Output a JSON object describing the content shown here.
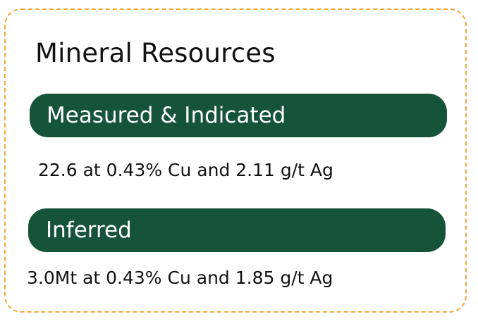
{
  "card": {
    "title": "Mineral Resources",
    "border_color": "#f3a73b",
    "pill_color": "#16543a"
  },
  "sections": [
    {
      "label": "Measured & Indicated",
      "value": "22.6 at 0.43% Cu and 2.11 g/t Ag"
    },
    {
      "label": "Inferred",
      "value": "3.0Mt at 0.43% Cu and 1.85 g/t Ag"
    }
  ]
}
